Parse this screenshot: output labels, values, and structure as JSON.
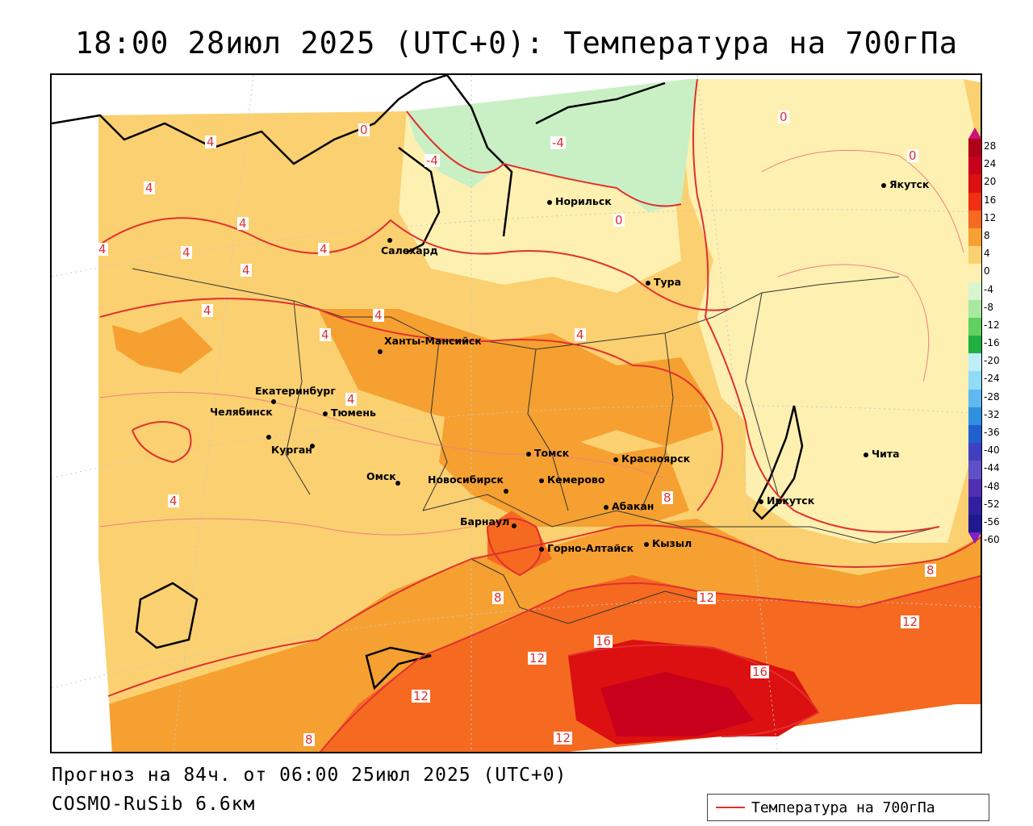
{
  "title": "18:00 28июл 2025 (UTC+0): Температура на 700гПа",
  "footer": {
    "forecast": "Прогноз на 84ч. от 06:00 25июл 2025 (UTC+0)",
    "model": "COSMO-RuSib 6.6км"
  },
  "legend": {
    "line_label": "Температура на 700гПа",
    "line_color": "#e03030"
  },
  "colorbar": {
    "labels": [
      "28",
      "24",
      "20",
      "16",
      "12",
      "8",
      "4",
      "0",
      "-4",
      "-8",
      "-12",
      "-16",
      "-20",
      "-24",
      "-28",
      "-32",
      "-36",
      "-40",
      "-44",
      "-48",
      "-52",
      "-56",
      "-60"
    ],
    "colors": [
      "#b0001a",
      "#c8001c",
      "#dc1010",
      "#f03010",
      "#f56a20",
      "#f5a030",
      "#fbd070",
      "#fef0b0",
      "#d8f5d0",
      "#a8e8a0",
      "#60d060",
      "#20b040",
      "#c0eef8",
      "#90dcf5",
      "#60b8f0",
      "#3090e0",
      "#2060d0",
      "#4040c0",
      "#6050c8",
      "#5030b0",
      "#3020a0",
      "#201890"
    ]
  },
  "cities": [
    {
      "name": "Норильск"
    },
    {
      "name": "Якутск"
    },
    {
      "name": "Салехард"
    },
    {
      "name": "Тура"
    },
    {
      "name": "Ханты-Мансийск"
    },
    {
      "name": "Екатеринбург"
    },
    {
      "name": "Тюмень"
    },
    {
      "name": "Челябинск"
    },
    {
      "name": "Курган"
    },
    {
      "name": "Омск"
    },
    {
      "name": "Новосибирск"
    },
    {
      "name": "Томск"
    },
    {
      "name": "Кемерово"
    },
    {
      "name": "Красноярск"
    },
    {
      "name": "Абакан"
    },
    {
      "name": "Барнаул"
    },
    {
      "name": "Горно-Алтайск"
    },
    {
      "name": "Кызыл"
    },
    {
      "name": "Иркутск"
    },
    {
      "name": "Чита"
    }
  ],
  "contour_labels": [
    "0",
    "-4",
    "-4",
    "0",
    "0",
    "0",
    "4",
    "4",
    "4",
    "4",
    "4",
    "4",
    "4",
    "4",
    "4",
    "4",
    "4",
    "4",
    "4",
    "8",
    "8",
    "8",
    "12",
    "12",
    "12",
    "16",
    "16",
    "12",
    "12",
    "8"
  ]
}
